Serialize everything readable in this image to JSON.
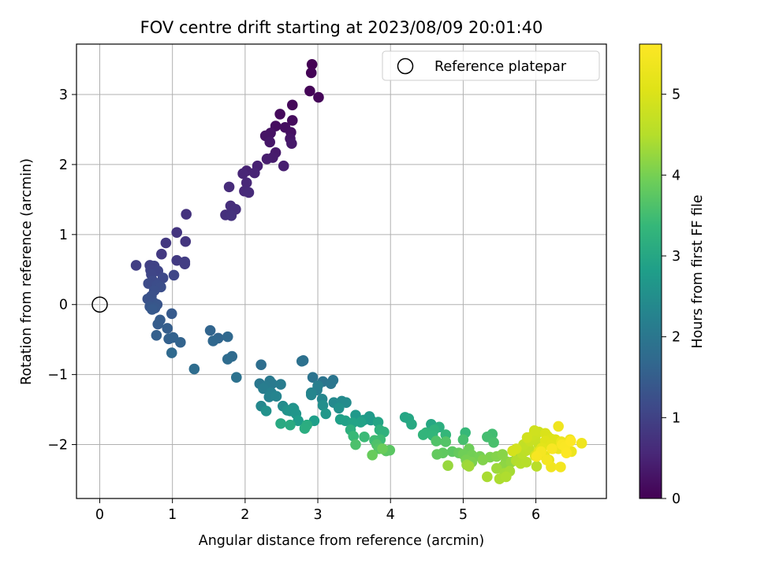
{
  "chart_data": {
    "type": "scatter",
    "title": "FOV centre drift starting at 2023/08/09 20:01:40",
    "xlabel": "Angular distance from reference (arcmin)",
    "ylabel": "Rotation from reference (arcmin)",
    "xlim": [
      -0.32,
      6.97
    ],
    "ylim": [
      -2.77,
      3.72
    ],
    "xticks": [
      0,
      1,
      2,
      3,
      4,
      5,
      6
    ],
    "yticks": [
      -2,
      -1,
      0,
      1,
      2,
      3
    ],
    "grid": true,
    "legend": {
      "position": "top-right",
      "entries": [
        "Reference platepar"
      ]
    },
    "reference_point": {
      "x": 0,
      "y": 0
    },
    "colorbar": {
      "label": "Hours from first FF file",
      "colormap": "viridis",
      "range": [
        0,
        5.62
      ],
      "ticks": [
        0,
        1,
        2,
        3,
        4,
        5
      ]
    },
    "points": [
      [
        2.92,
        3.43
      ],
      [
        2.91,
        3.31
      ],
      [
        2.89,
        3.05
      ],
      [
        3.01,
        2.96
      ],
      [
        2.65,
        2.85
      ],
      [
        2.48,
        2.72
      ],
      [
        2.65,
        2.63
      ],
      [
        2.42,
        2.55
      ],
      [
        2.55,
        2.53
      ],
      [
        2.63,
        2.46
      ],
      [
        2.35,
        2.45
      ],
      [
        2.28,
        2.41
      ],
      [
        2.62,
        2.37
      ],
      [
        2.34,
        2.32
      ],
      [
        2.64,
        2.3
      ],
      [
        2.42,
        2.17
      ],
      [
        2.38,
        2.1
      ],
      [
        2.3,
        2.08
      ],
      [
        2.53,
        1.98
      ],
      [
        2.17,
        1.98
      ],
      [
        2.02,
        1.91
      ],
      [
        2.13,
        1.88
      ],
      [
        1.97,
        1.87
      ],
      [
        2.02,
        1.74
      ],
      [
        1.99,
        1.62
      ],
      [
        2.05,
        1.6
      ],
      [
        1.78,
        1.68
      ],
      [
        1.8,
        1.41
      ],
      [
        1.87,
        1.36
      ],
      [
        1.73,
        1.28
      ],
      [
        1.81,
        1.27
      ],
      [
        1.19,
        1.29
      ],
      [
        1.06,
        1.03
      ],
      [
        1.18,
        0.9
      ],
      [
        0.91,
        0.88
      ],
      [
        0.85,
        0.72
      ],
      [
        1.06,
        0.63
      ],
      [
        1.17,
        0.58
      ],
      [
        1.17,
        0.61
      ],
      [
        0.5,
        0.56
      ],
      [
        0.69,
        0.56
      ],
      [
        0.75,
        0.55
      ],
      [
        0.7,
        0.49
      ],
      [
        0.8,
        0.48
      ],
      [
        0.71,
        0.43
      ],
      [
        1.02,
        0.42
      ],
      [
        0.87,
        0.38
      ],
      [
        0.73,
        0.34
      ],
      [
        0.67,
        0.3
      ],
      [
        0.79,
        0.28
      ],
      [
        0.84,
        0.25
      ],
      [
        0.75,
        0.2
      ],
      [
        0.71,
        0.12
      ],
      [
        0.66,
        0.08
      ],
      [
        0.74,
        0.03
      ],
      [
        0.79,
        0.0
      ],
      [
        0.69,
        -0.03
      ],
      [
        0.76,
        -0.05
      ],
      [
        0.72,
        -0.07
      ],
      [
        0.99,
        -0.13
      ],
      [
        0.83,
        -0.22
      ],
      [
        0.8,
        -0.28
      ],
      [
        0.93,
        -0.34
      ],
      [
        0.78,
        -0.44
      ],
      [
        0.95,
        -0.49
      ],
      [
        1.01,
        -0.47
      ],
      [
        1.11,
        -0.54
      ],
      [
        1.52,
        -0.37
      ],
      [
        1.63,
        -0.48
      ],
      [
        1.56,
        -0.52
      ],
      [
        1.76,
        -0.46
      ],
      [
        0.99,
        -0.69
      ],
      [
        1.82,
        -0.74
      ],
      [
        1.76,
        -0.78
      ],
      [
        1.3,
        -0.92
      ],
      [
        2.22,
        -0.86
      ],
      [
        2.8,
        -0.8
      ],
      [
        2.78,
        -0.81
      ],
      [
        1.88,
        -1.04
      ],
      [
        2.93,
        -1.04
      ],
      [
        3.07,
        -1.1
      ],
      [
        3.21,
        -1.08
      ],
      [
        3.18,
        -1.13
      ],
      [
        2.2,
        -1.13
      ],
      [
        2.34,
        -1.09
      ],
      [
        2.37,
        -1.13
      ],
      [
        2.29,
        -1.17
      ],
      [
        2.49,
        -1.14
      ],
      [
        2.25,
        -1.2
      ],
      [
        3.0,
        -1.16
      ],
      [
        2.99,
        -1.22
      ],
      [
        2.36,
        -1.26
      ],
      [
        2.33,
        -1.32
      ],
      [
        2.91,
        -1.26
      ],
      [
        2.43,
        -1.31
      ],
      [
        2.91,
        -1.29
      ],
      [
        3.06,
        -1.35
      ],
      [
        2.22,
        -1.45
      ],
      [
        3.22,
        -1.4
      ],
      [
        3.33,
        -1.38
      ],
      [
        3.39,
        -1.4
      ],
      [
        2.52,
        -1.45
      ],
      [
        2.66,
        -1.48
      ],
      [
        3.07,
        -1.44
      ],
      [
        3.29,
        -1.48
      ],
      [
        2.29,
        -1.52
      ],
      [
        2.58,
        -1.51
      ],
      [
        2.67,
        -1.49
      ],
      [
        2.62,
        -1.52
      ],
      [
        2.7,
        -1.56
      ],
      [
        3.11,
        -1.56
      ],
      [
        3.52,
        -1.58
      ],
      [
        3.71,
        -1.6
      ],
      [
        3.73,
        -1.65
      ],
      [
        3.63,
        -1.65
      ],
      [
        2.73,
        -1.66
      ],
      [
        2.95,
        -1.66
      ],
      [
        3.31,
        -1.64
      ],
      [
        3.38,
        -1.66
      ],
      [
        3.59,
        -1.68
      ],
      [
        3.48,
        -1.69
      ],
      [
        3.83,
        -1.68
      ],
      [
        4.2,
        -1.61
      ],
      [
        4.25,
        -1.63
      ],
      [
        4.56,
        -1.71
      ],
      [
        4.29,
        -1.71
      ],
      [
        2.49,
        -1.7
      ],
      [
        2.62,
        -1.72
      ],
      [
        2.85,
        -1.72
      ],
      [
        2.82,
        -1.77
      ],
      [
        4.67,
        -1.75
      ],
      [
        3.45,
        -1.79
      ],
      [
        3.85,
        -1.79
      ],
      [
        3.91,
        -1.82
      ],
      [
        4.6,
        -1.79
      ],
      [
        4.49,
        -1.83
      ],
      [
        4.45,
        -1.86
      ],
      [
        4.58,
        -1.87
      ],
      [
        4.76,
        -1.86
      ],
      [
        5.03,
        -1.83
      ],
      [
        3.49,
        -1.88
      ],
      [
        3.64,
        -1.89
      ],
      [
        3.86,
        -1.93
      ],
      [
        3.78,
        -1.94
      ],
      [
        5.4,
        -1.85
      ],
      [
        5.33,
        -1.89
      ],
      [
        5.0,
        -1.93
      ],
      [
        5.42,
        -1.97
      ],
      [
        3.52,
        -2.0
      ],
      [
        3.81,
        -2.0
      ],
      [
        4.63,
        -1.95
      ],
      [
        4.76,
        -1.96
      ],
      [
        3.84,
        -2.06
      ],
      [
        3.94,
        -2.09
      ],
      [
        3.99,
        -2.08
      ],
      [
        4.85,
        -2.1
      ],
      [
        4.72,
        -2.12
      ],
      [
        4.64,
        -2.14
      ],
      [
        4.94,
        -2.12
      ],
      [
        3.75,
        -2.15
      ],
      [
        3.89,
        -2.06
      ],
      [
        5.08,
        -2.06
      ],
      [
        5.0,
        -2.14
      ],
      [
        5.12,
        -2.15
      ],
      [
        5.23,
        -2.17
      ],
      [
        5.04,
        -2.22
      ],
      [
        5.12,
        -2.25
      ],
      [
        5.37,
        -2.18
      ],
      [
        5.27,
        -2.22
      ],
      [
        5.46,
        -2.17
      ],
      [
        5.54,
        -2.14
      ],
      [
        5.59,
        -2.24
      ],
      [
        5.55,
        -2.31
      ],
      [
        5.74,
        -2.17
      ],
      [
        5.66,
        -2.25
      ],
      [
        4.79,
        -2.3
      ],
      [
        5.05,
        -2.29
      ],
      [
        5.46,
        -2.34
      ],
      [
        5.08,
        -2.31
      ],
      [
        5.57,
        -2.41
      ],
      [
        5.64,
        -2.38
      ],
      [
        5.33,
        -2.46
      ],
      [
        5.5,
        -2.49
      ],
      [
        5.59,
        -2.46
      ],
      [
        5.73,
        -2.23
      ],
      [
        5.79,
        -2.27
      ],
      [
        5.87,
        -2.25
      ],
      [
        6.01,
        -2.31
      ],
      [
        5.81,
        -2.13
      ],
      [
        5.86,
        -2.09
      ],
      [
        5.83,
        -2.05
      ],
      [
        5.91,
        -2.07
      ],
      [
        5.83,
        -2.0
      ],
      [
        6.04,
        -2.0
      ],
      [
        6.05,
        -1.99
      ],
      [
        5.92,
        -1.95
      ],
      [
        5.99,
        -1.9
      ],
      [
        5.96,
        -1.87
      ],
      [
        6.04,
        -1.82
      ],
      [
        5.98,
        -1.8
      ],
      [
        5.88,
        -1.9
      ],
      [
        5.73,
        -2.06
      ],
      [
        5.68,
        -2.09
      ],
      [
        5.99,
        -2.16
      ],
      [
        6.16,
        -1.88
      ],
      [
        6.13,
        -1.84
      ],
      [
        6.21,
        -1.92
      ],
      [
        6.26,
        -1.97
      ],
      [
        6.27,
        -1.93
      ],
      [
        6.13,
        -1.95
      ],
      [
        6.2,
        -2.01
      ],
      [
        6.08,
        -2.05
      ],
      [
        6.04,
        -2.1
      ],
      [
        6.12,
        -2.16
      ],
      [
        6.18,
        -2.22
      ],
      [
        6.23,
        -2.06
      ],
      [
        6.31,
        -2.06
      ],
      [
        6.35,
        -1.96
      ],
      [
        6.47,
        -1.93
      ],
      [
        6.49,
        -2.1
      ],
      [
        6.63,
        -1.98
      ],
      [
        6.31,
        -1.74
      ],
      [
        6.21,
        -2.32
      ],
      [
        6.34,
        -2.32
      ],
      [
        6.15,
        -2.22
      ],
      [
        6.07,
        -2.1
      ],
      [
        6.01,
        -2.17
      ],
      [
        6.22,
        -2.06
      ],
      [
        6.36,
        -2.0
      ],
      [
        6.4,
        -2.03
      ],
      [
        6.42,
        -2.12
      ],
      [
        6.48,
        -1.95
      ]
    ]
  }
}
